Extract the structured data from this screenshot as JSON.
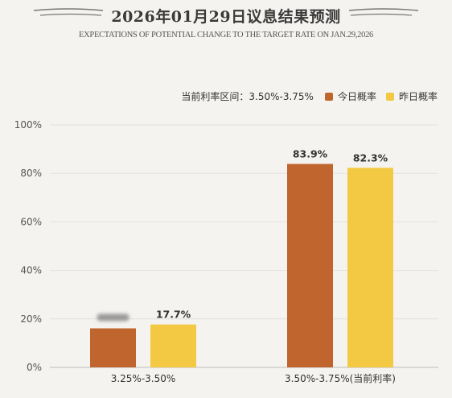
{
  "header": {
    "title": "2026年01月29日议息结果预测",
    "subtitle": "EXPECTATIONS OF POTENTIAL CHANGE TO THE TARGET RATE ON JAN.29,2026"
  },
  "legend": {
    "current_rate": "当前利率区间：3.50%-3.75%",
    "items": [
      {
        "label": "今日概率",
        "color": "#c0652e"
      },
      {
        "label": "昨日概率",
        "color": "#f3c843"
      }
    ]
  },
  "chart_data": {
    "type": "bar",
    "categories": [
      "3.25%-3.50%",
      "3.50%-3.75%(当前利率)"
    ],
    "series": [
      {
        "name": "今日概率",
        "values": [
          16.1,
          83.9
        ],
        "labels": [
          "",
          "83.9%"
        ],
        "color": "#c0652e"
      },
      {
        "name": "昨日概率",
        "values": [
          17.7,
          82.3
        ],
        "labels": [
          "17.7%",
          "82.3%"
        ],
        "color": "#f3c843"
      }
    ],
    "ylim": [
      0,
      100
    ],
    "yticks": [
      "0%",
      "20%",
      "40%",
      "60%",
      "80%",
      "100%"
    ],
    "grid": true,
    "legend_position": "top-right"
  }
}
